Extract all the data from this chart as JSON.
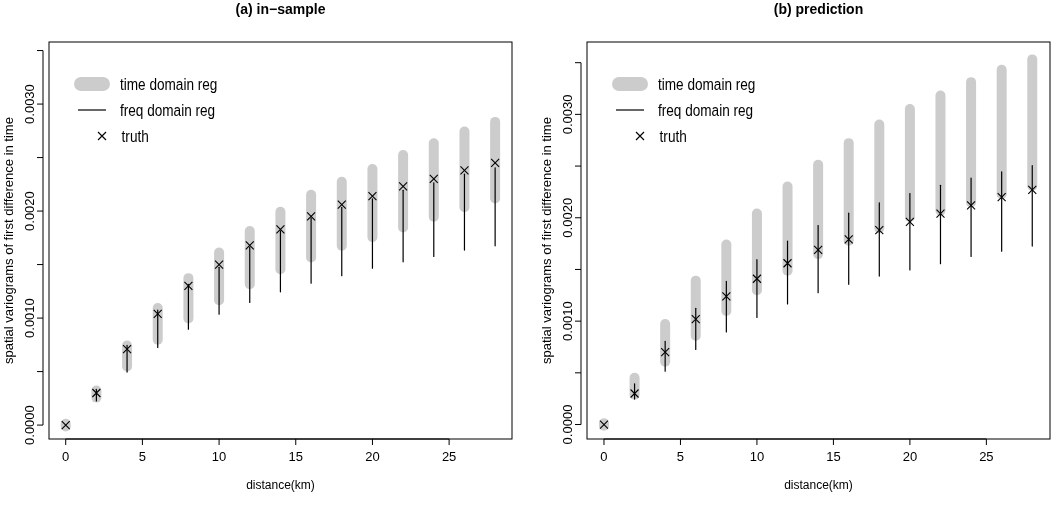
{
  "chart_data": [
    {
      "type": "bar",
      "title": "(a) in−sample",
      "xlabel": "distance(km)",
      "ylabel": "spatial variograms of first difference in time",
      "x": [
        0,
        2,
        4,
        6,
        8,
        10,
        12,
        14,
        16,
        18,
        20,
        22,
        24,
        26,
        28
      ],
      "xlim": [
        -1.09,
        29.1
      ],
      "xticks": [
        0,
        5,
        10,
        15,
        20,
        25
      ],
      "ylim": [
        -0.00013,
        0.00358
      ],
      "yticks": [
        {
          "value": 0,
          "label": "0.0000"
        },
        {
          "value": 0.0005,
          "label": null
        },
        {
          "value": 0.001,
          "label": "0.0010"
        },
        {
          "value": 0.0015,
          "label": null
        },
        {
          "value": 0.002,
          "label": "0.0020"
        },
        {
          "value": 0.0025,
          "label": null
        },
        {
          "value": 0.003,
          "label": "0.0030"
        },
        {
          "value": 0.0035,
          "label": null
        }
      ],
      "legend": "top left",
      "series": [
        {
          "name": "time domain reg",
          "color": "#cccccc",
          "base": [
            -6e-05,
            0.00021,
            0.0005,
            0.00075,
            0.00095,
            0.00112,
            0.00127,
            0.00141,
            0.00152,
            0.00163,
            0.00171,
            0.0018,
            0.0019,
            0.00199,
            0.00207
          ],
          "values": [
            0.00012,
            0.00016,
            0.00029,
            0.00039,
            0.00047,
            0.00054,
            0.00059,
            0.00063,
            0.00068,
            0.00069,
            0.00073,
            0.00077,
            0.00078,
            0.0008,
            0.00081
          ]
        },
        {
          "name": "freq domain reg",
          "color": "#000000",
          "base": [
            null,
            0.00022,
            0.00049,
            0.00072,
            0.00089,
            0.00103,
            0.00114,
            0.00124,
            0.00132,
            0.00139,
            0.00146,
            0.00152,
            0.00157,
            0.00163,
            0.00167
          ],
          "values": [
            null,
            0.00012,
            0.00026,
            0.00036,
            0.00043,
            0.00045,
            0.00053,
            0.00058,
            0.00062,
            0.00065,
            0.00066,
            0.00068,
            0.0007,
            0.00072,
            0.00074
          ]
        },
        {
          "name": "truth",
          "type": "scatter",
          "marker": "cross",
          "color": "#000000",
          "values": [
            0,
            0.0003,
            0.00071,
            0.00104,
            0.0013,
            0.0015,
            0.00168,
            0.00183,
            0.00195,
            0.00206,
            0.00214,
            0.00223,
            0.0023,
            0.00238,
            0.00245
          ]
        }
      ]
    },
    {
      "type": "bar",
      "title": "(b) prediction",
      "xlabel": "distance(km)",
      "ylabel": "spatial variograms of first difference in time",
      "x": [
        0,
        2,
        4,
        6,
        8,
        10,
        12,
        14,
        16,
        18,
        20,
        22,
        24,
        26,
        28
      ],
      "xlim": [
        -1.11,
        29.16
      ],
      "xticks": [
        0,
        5,
        10,
        15,
        20,
        25
      ],
      "ylim": [
        -0.00014,
        0.0037
      ],
      "yticks": [
        {
          "value": 0,
          "label": "0.0000"
        },
        {
          "value": 0.0005,
          "label": null
        },
        {
          "value": 0.001,
          "label": "0.0010"
        },
        {
          "value": 0.0015,
          "label": null
        },
        {
          "value": 0.002,
          "label": "0.0020"
        },
        {
          "value": 0.0025,
          "label": null
        },
        {
          "value": 0.003,
          "label": "0.0030"
        },
        {
          "value": 0.0035,
          "label": null
        }
      ],
      "legend": "top left",
      "series": [
        {
          "name": "time domain reg",
          "color": "#cccccc",
          "base": [
            -6e-05,
            0.00024,
            0.00056,
            0.00081,
            0.00105,
            0.00125,
            0.00144,
            0.0016,
            0.00173,
            0.00185,
            0.00196,
            0.00202,
            0.0021,
            0.00218,
            0.00226
          ],
          "values": [
            0.00012,
            0.00026,
            0.00046,
            0.00063,
            0.00074,
            0.00084,
            0.00091,
            0.00096,
            0.00104,
            0.0011,
            0.00114,
            0.00121,
            0.00126,
            0.0013,
            0.00132
          ]
        },
        {
          "name": "freq domain reg",
          "color": "#000000",
          "base": [
            null,
            0.00024,
            0.00051,
            0.00072,
            0.00089,
            0.00103,
            0.00116,
            0.00127,
            0.00135,
            0.00143,
            0.00149,
            0.00155,
            0.00162,
            0.00167,
            0.00172
          ],
          "values": [
            null,
            0.00016,
            0.0003,
            0.00041,
            0.0005,
            0.00057,
            0.00062,
            0.00066,
            0.0007,
            0.00072,
            0.00075,
            0.00077,
            0.00077,
            0.00078,
            0.00079
          ]
        },
        {
          "name": "truth",
          "type": "scatter",
          "marker": "cross",
          "color": "#000000",
          "values": [
            0,
            0.0003,
            0.0007,
            0.00102,
            0.00124,
            0.00141,
            0.00156,
            0.00169,
            0.00179,
            0.00188,
            0.00196,
            0.00204,
            0.00212,
            0.0022,
            0.00227
          ]
        }
      ]
    }
  ]
}
